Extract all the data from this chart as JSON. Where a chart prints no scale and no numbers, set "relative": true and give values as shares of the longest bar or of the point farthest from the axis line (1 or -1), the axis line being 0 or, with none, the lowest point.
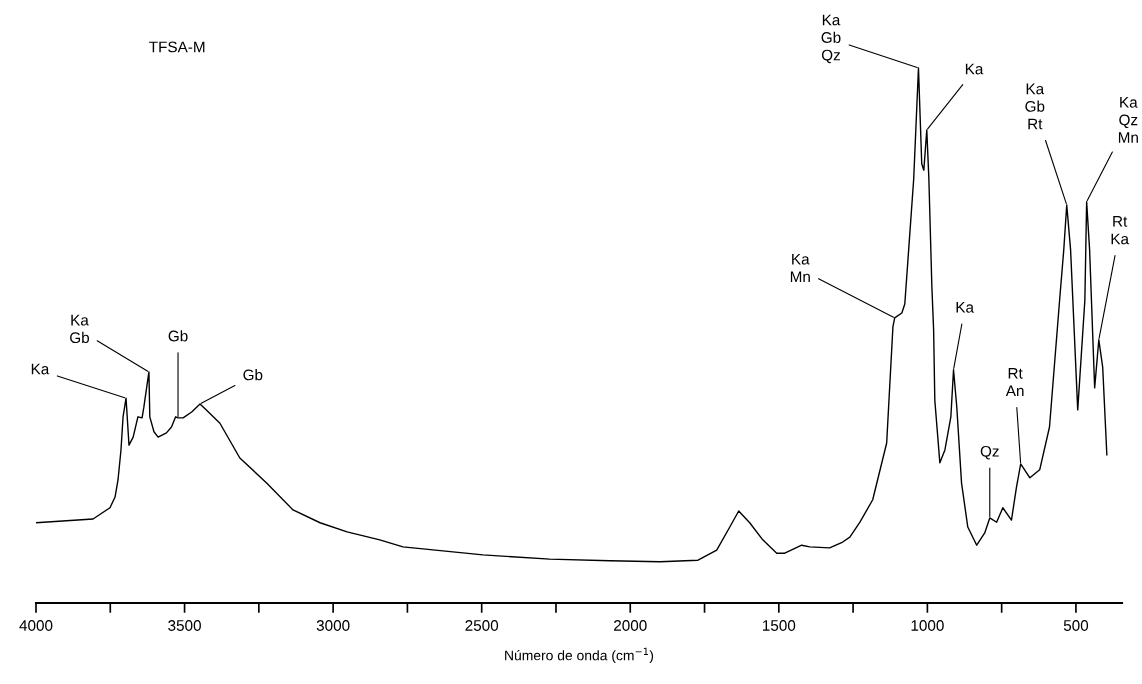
{
  "chart_data": {
    "type": "line",
    "relative": true,
    "xlabel": "Número de onda (cm$^{−1}$)",
    "xlim": [
      4000,
      345
    ],
    "xticks": [
      4000,
      {
        "value": 3750,
        "label": null
      },
      3500,
      {
        "value": 3250,
        "label": null
      },
      3000,
      {
        "value": 2750,
        "label": null
      },
      2500,
      {
        "value": 2250,
        "label": null
      },
      2000,
      {
        "value": 1750,
        "label": null
      },
      1500,
      {
        "value": 1250,
        "label": null
      },
      1000,
      {
        "value": 750,
        "label": null
      },
      500
    ],
    "x": [
      4000,
      3808,
      3751,
      3734,
      3724,
      3714,
      3707,
      3697,
      3687,
      3673,
      3657,
      3643,
      3637,
      3620,
      3617,
      3603,
      3589,
      3561,
      3544,
      3530,
      3522,
      3505,
      3476,
      3448,
      3431,
      3381,
      3314,
      3223,
      3135,
      3044,
      2953,
      2843,
      2765,
      2496,
      2271,
      2069,
      1900,
      1772,
      1709,
      1665,
      1635,
      1598,
      1554,
      1507,
      1480,
      1423,
      1396,
      1329,
      1285,
      1261,
      1227,
      1184,
      1137,
      1116,
      1110,
      1086,
      1076,
      1063,
      1046,
      1030,
      1019,
      1012,
      1002,
      995,
      985,
      979,
      975,
      958,
      941,
      921,
      912,
      901,
      885,
      864,
      834,
      807,
      790,
      767,
      746,
      717,
      700,
      686,
      655,
      622,
      589,
      555,
      541,
      531,
      518,
      494,
      470,
      464,
      454,
      437,
      423,
      410,
      396
    ],
    "series": [
      {
        "color": "#000000",
        "values": [
          0.15,
          0.157,
          0.178,
          0.198,
          0.23,
          0.286,
          0.348,
          0.383,
          0.295,
          0.31,
          0.348,
          0.346,
          0.366,
          0.432,
          0.348,
          0.32,
          0.31,
          0.318,
          0.329,
          0.348,
          0.346,
          0.346,
          0.357,
          0.372,
          0.363,
          0.336,
          0.271,
          0.224,
          0.174,
          0.15,
          0.133,
          0.118,
          0.105,
          0.09,
          0.082,
          0.079,
          0.077,
          0.08,
          0.099,
          0.142,
          0.172,
          0.15,
          0.118,
          0.093,
          0.093,
          0.108,
          0.105,
          0.103,
          0.114,
          0.123,
          0.151,
          0.193,
          0.299,
          0.516,
          0.533,
          0.542,
          0.559,
          0.66,
          0.793,
          1.0,
          0.821,
          0.809,
          0.884,
          0.793,
          0.593,
          0.51,
          0.379,
          0.262,
          0.286,
          0.348,
          0.436,
          0.366,
          0.224,
          0.142,
          0.108,
          0.131,
          0.159,
          0.151,
          0.178,
          0.155,
          0.217,
          0.26,
          0.234,
          0.249,
          0.329,
          0.566,
          0.66,
          0.744,
          0.66,
          0.361,
          0.566,
          0.75,
          0.66,
          0.402,
          0.492,
          0.441,
          0.277
        ]
      }
    ],
    "annotations": [
      "TFSA-M",
      {
        "text": "Ka",
        "x": 3697,
        "y": 0.383
      },
      {
        "text": "Ka\nGb",
        "x": 3620,
        "y": 0.432
      },
      {
        "text": "Gb",
        "x": 3522,
        "y": 0.346
      },
      {
        "text": "Gb",
        "x": 3448,
        "y": 0.372
      },
      {
        "text": "Ka\nMn",
        "x": 1110,
        "y": 0.533
      },
      {
        "text": "Ka\nGb\nQz",
        "x": 1030,
        "y": 1.0
      },
      {
        "text": "Ka",
        "x": 1002,
        "y": 0.884
      },
      {
        "text": "Ka",
        "x": 912,
        "y": 0.436
      },
      {
        "text": "Qz",
        "x": 790,
        "y": 0.159
      },
      {
        "text": "Rt\nAn",
        "x": 686,
        "y": 0.26
      },
      {
        "text": "Ka\nGb\nRt",
        "x": 531,
        "y": 0.744
      },
      {
        "text": "Ka\nQz\nMn",
        "x": 464,
        "y": 0.75
      },
      {
        "text": "Rt\nKa",
        "x": 423,
        "y": 0.492
      }
    ]
  }
}
